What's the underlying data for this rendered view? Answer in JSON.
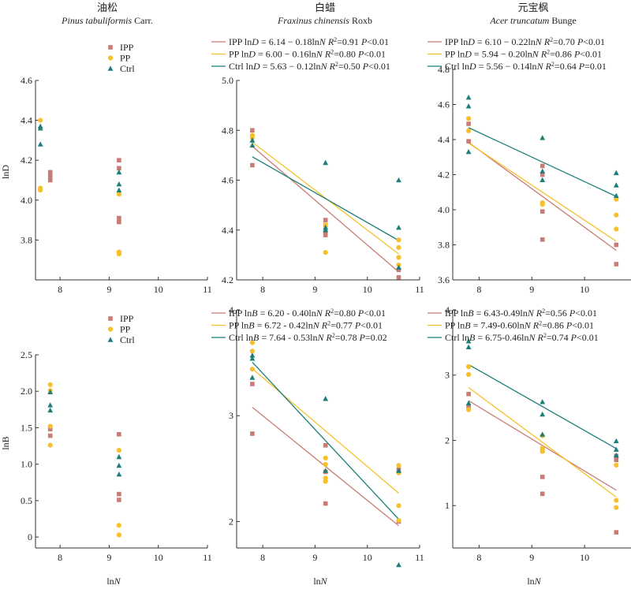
{
  "colors": {
    "IPP": "#c97b75",
    "PP": "#f6c02a",
    "Ctrl": "#1d7f7a",
    "axis": "#333333"
  },
  "legend_labels": {
    "IPP": "IPP",
    "PP": "PP",
    "Ctrl": "Ctrl"
  },
  "row_labels": {
    "top": "lnD",
    "bottom": "lnB"
  },
  "species": [
    {
      "cn": "油松",
      "latin": "Pinus tabuliformis",
      "authority": "Carr."
    },
    {
      "cn": "白蜡",
      "latin": "Fraxinus chinensis",
      "authority": "Roxb"
    },
    {
      "cn": "元宝枫",
      "latin": "Acer truncatum",
      "authority": "Bunge"
    }
  ],
  "chart_data": [
    {
      "type": "scatter",
      "id": "pinus-lnD",
      "xlabel": "",
      "ylabel": "lnD",
      "xlim": [
        7.5,
        11
      ],
      "ylim": [
        3.6,
        4.6
      ],
      "xticks": [
        8,
        9,
        10,
        11
      ],
      "yticks": [
        3.8,
        4.0,
        4.2,
        4.4,
        4.6
      ],
      "ytick_labels": [
        "3.8",
        "4.0",
        "4.2",
        "4.4",
        "4.6"
      ],
      "legend": [
        "IPP",
        "PP",
        "Ctrl"
      ],
      "series": [
        {
          "name": "IPP",
          "points": [
            [
              7.8,
              4.14
            ],
            [
              7.8,
              4.12
            ],
            [
              7.8,
              4.1
            ],
            [
              9.2,
              4.2
            ],
            [
              9.2,
              4.16
            ],
            [
              9.2,
              3.91
            ],
            [
              9.2,
              3.89
            ]
          ]
        },
        {
          "name": "PP",
          "points": [
            [
              7.6,
              4.4
            ],
            [
              7.6,
              4.06
            ],
            [
              7.6,
              4.05
            ],
            [
              9.2,
              4.03
            ],
            [
              9.2,
              3.74
            ],
            [
              9.2,
              3.73
            ]
          ]
        },
        {
          "name": "Ctrl",
          "points": [
            [
              7.6,
              4.37
            ],
            [
              7.6,
              4.36
            ],
            [
              7.6,
              4.28
            ],
            [
              9.2,
              4.14
            ],
            [
              9.2,
              4.08
            ],
            [
              9.2,
              4.05
            ]
          ]
        }
      ],
      "fits": []
    },
    {
      "type": "scatter",
      "id": "fraxinus-lnD",
      "xlabel": "",
      "ylabel": "",
      "xlim": [
        7.5,
        11
      ],
      "ylim": [
        4.2,
        5.0
      ],
      "xticks": [
        8,
        9,
        10,
        11
      ],
      "yticks": [
        4.2,
        4.4,
        4.6,
        4.8,
        5.0
      ],
      "ytick_labels": [
        "4.2",
        "4.4",
        "4.6",
        "4.8",
        "5.0"
      ],
      "series": [
        {
          "name": "IPP",
          "points": [
            [
              7.8,
              4.8
            ],
            [
              7.8,
              4.66
            ],
            [
              9.2,
              4.44
            ],
            [
              9.2,
              4.42
            ],
            [
              9.2,
              4.39
            ],
            [
              9.2,
              4.38
            ],
            [
              10.6,
              4.24
            ],
            [
              10.6,
              4.21
            ]
          ]
        },
        {
          "name": "PP",
          "points": [
            [
              7.8,
              4.78
            ],
            [
              7.8,
              4.77
            ],
            [
              9.2,
              4.42
            ],
            [
              9.2,
              4.31
            ],
            [
              10.6,
              4.36
            ],
            [
              10.6,
              4.33
            ],
            [
              10.6,
              4.29
            ],
            [
              10.6,
              4.26
            ]
          ]
        },
        {
          "name": "Ctrl",
          "points": [
            [
              7.8,
              4.76
            ],
            [
              7.8,
              4.74
            ],
            [
              9.2,
              4.67
            ],
            [
              9.2,
              4.41
            ],
            [
              9.2,
              4.4
            ],
            [
              10.6,
              4.6
            ],
            [
              10.6,
              4.41
            ],
            [
              10.6,
              4.25
            ]
          ]
        }
      ],
      "fits": [
        {
          "name": "IPP",
          "label": "IPP",
          "a": 6.14,
          "b": -0.18,
          "x": [
            7.8,
            10.6
          ],
          "eq": "6.14 − 0.18ln",
          "r2": "0.91",
          "p": "<0.01"
        },
        {
          "name": "PP",
          "label": "PP",
          "a": 6.0,
          "b": -0.16,
          "x": [
            7.8,
            10.6
          ],
          "eq": "6.00 − 0.16ln",
          "r2": "0.80",
          "p": "<0.01"
        },
        {
          "name": "Ctrl",
          "label": "Ctrl",
          "a": 5.63,
          "b": -0.12,
          "x": [
            7.8,
            10.6
          ],
          "eq": "5.63 − 0.12ln",
          "r2": "0.50",
          "p": "<0.01"
        }
      ]
    },
    {
      "type": "scatter",
      "id": "acer-lnD",
      "xlabel": "",
      "ylabel": "",
      "xlim": [
        7.5,
        11
      ],
      "ylim": [
        3.6,
        4.8
      ],
      "xticks": [
        8,
        9,
        10,
        11
      ],
      "yticks": [
        3.6,
        3.8,
        4.0,
        4.2,
        4.4,
        4.6,
        4.8
      ],
      "ytick_labels": [
        "3.6",
        "3.8",
        "4.0",
        "4.2",
        "4.4",
        "4.6",
        "4.8"
      ],
      "series": [
        {
          "name": "IPP",
          "points": [
            [
              7.8,
              4.49
            ],
            [
              7.8,
              4.39
            ],
            [
              9.2,
              4.25
            ],
            [
              9.2,
              4.2
            ],
            [
              9.2,
              3.99
            ],
            [
              9.2,
              3.83
            ],
            [
              10.6,
              3.8
            ],
            [
              10.6,
              3.69
            ]
          ]
        },
        {
          "name": "PP",
          "points": [
            [
              7.8,
              4.52
            ],
            [
              7.8,
              4.45
            ],
            [
              9.2,
              4.04
            ],
            [
              9.2,
              4.03
            ],
            [
              10.6,
              4.06
            ],
            [
              10.6,
              3.97
            ],
            [
              10.6,
              3.89
            ]
          ]
        },
        {
          "name": "Ctrl",
          "points": [
            [
              7.8,
              4.64
            ],
            [
              7.8,
              4.59
            ],
            [
              7.8,
              4.33
            ],
            [
              9.2,
              4.41
            ],
            [
              9.2,
              4.22
            ],
            [
              9.2,
              4.17
            ],
            [
              10.6,
              4.21
            ],
            [
              10.6,
              4.14
            ],
            [
              10.6,
              4.08
            ]
          ]
        }
      ],
      "fits": [
        {
          "name": "IPP",
          "label": "IPP",
          "a": 6.1,
          "b": -0.22,
          "x": [
            7.8,
            10.6
          ],
          "eq": "6.10 − 0.22ln",
          "r2": "0.70",
          "p": "<0.01"
        },
        {
          "name": "PP",
          "label": "PP",
          "a": 5.94,
          "b": -0.2,
          "x": [
            7.8,
            10.6
          ],
          "eq": "5.94 − 0.20ln",
          "r2": "0.86",
          "p": "<0.01"
        },
        {
          "name": "Ctrl",
          "label": "Ctrl",
          "a": 5.56,
          "b": -0.14,
          "x": [
            7.8,
            10.6
          ],
          "eq": "5.56 − 0.14ln",
          "r2": "0.64",
          "p": "=0.01"
        }
      ]
    },
    {
      "type": "scatter",
      "id": "pinus-lnB",
      "xlabel": "lnN",
      "ylabel": "lnB",
      "xlim": [
        7.5,
        11
      ],
      "ylim": [
        -0.15,
        2.5
      ],
      "xticks": [
        8,
        9,
        10,
        11
      ],
      "yticks": [
        0,
        0.5,
        1.0,
        1.5,
        2.0,
        2.5
      ],
      "ytick_labels": [
        "0",
        "0.5",
        "1.0",
        "1.5",
        "2.0",
        "2.5"
      ],
      "legend": [
        "IPP",
        "PP",
        "Ctrl"
      ],
      "series": [
        {
          "name": "IPP",
          "points": [
            [
              7.8,
              1.48
            ],
            [
              7.8,
              1.39
            ],
            [
              9.2,
              1.41
            ],
            [
              9.2,
              0.59
            ],
            [
              9.2,
              0.51
            ]
          ]
        },
        {
          "name": "PP",
          "points": [
            [
              7.8,
              2.09
            ],
            [
              7.8,
              2.01
            ],
            [
              7.8,
              1.52
            ],
            [
              7.8,
              1.26
            ],
            [
              9.2,
              1.19
            ],
            [
              9.2,
              0.16
            ],
            [
              9.2,
              0.03
            ]
          ]
        },
        {
          "name": "Ctrl",
          "points": [
            [
              7.8,
              1.99
            ],
            [
              7.8,
              1.81
            ],
            [
              7.8,
              1.74
            ],
            [
              9.2,
              1.1
            ],
            [
              9.2,
              0.98
            ],
            [
              9.2,
              0.86
            ]
          ]
        }
      ],
      "fits": []
    },
    {
      "type": "scatter",
      "id": "fraxinus-lnB",
      "xlabel": "lnN",
      "ylabel": "",
      "xlim": [
        7.5,
        11
      ],
      "ylim": [
        1.75,
        4.0
      ],
      "xticks": [
        8,
        9,
        10,
        11
      ],
      "yticks": [
        2,
        3,
        4
      ],
      "ytick_labels": [
        "2",
        "3",
        "4"
      ],
      "series": [
        {
          "name": "IPP",
          "points": [
            [
              7.8,
              3.3
            ],
            [
              7.8,
              2.83
            ],
            [
              9.2,
              2.72
            ],
            [
              9.2,
              2.47
            ],
            [
              9.2,
              2.17
            ],
            [
              10.6,
              2.49
            ],
            [
              10.6,
              2.0
            ]
          ]
        },
        {
          "name": "PP",
          "points": [
            [
              7.8,
              3.69
            ],
            [
              7.8,
              3.61
            ],
            [
              7.8,
              3.44
            ],
            [
              9.2,
              2.6
            ],
            [
              9.2,
              2.54
            ],
            [
              9.2,
              2.41
            ],
            [
              9.2,
              2.38
            ],
            [
              10.6,
              2.53
            ],
            [
              10.6,
              2.46
            ],
            [
              10.6,
              2.15
            ],
            [
              10.6,
              2.01
            ]
          ]
        },
        {
          "name": "Ctrl",
          "points": [
            [
              7.8,
              3.57
            ],
            [
              7.8,
              3.54
            ],
            [
              7.8,
              3.36
            ],
            [
              9.2,
              3.16
            ],
            [
              9.2,
              2.48
            ],
            [
              10.6,
              2.48
            ],
            [
              10.6,
              1.59
            ]
          ]
        }
      ],
      "fits": [
        {
          "name": "IPP",
          "label": "IPP",
          "a": 6.2,
          "b": -0.4,
          "x": [
            7.8,
            10.6
          ],
          "eq": "6.20 - 0.40ln",
          "r2": "0.80",
          "p": "<0.01"
        },
        {
          "name": "PP",
          "label": "PP",
          "a": 6.72,
          "b": -0.42,
          "x": [
            7.8,
            10.6
          ],
          "eq": "6.72 - 0.42ln",
          "r2": "0.77",
          "p": "<0.01"
        },
        {
          "name": "Ctrl",
          "label": "Ctrl",
          "a": 7.64,
          "b": -0.53,
          "x": [
            7.8,
            10.6
          ],
          "eq": "7.64 - 0.53ln",
          "r2": "0.78",
          "p": "=0.02"
        }
      ]
    },
    {
      "type": "scatter",
      "id": "acer-lnB",
      "xlabel": "lnN",
      "ylabel": "",
      "xlim": [
        7.5,
        11
      ],
      "ylim": [
        0.35,
        4.0
      ],
      "xticks": [
        8,
        9,
        10,
        11
      ],
      "yticks": [
        1,
        2,
        3,
        4
      ],
      "ytick_labels": [
        "1",
        "2",
        "3",
        "4"
      ],
      "series": [
        {
          "name": "IPP",
          "points": [
            [
              7.8,
              2.71
            ],
            [
              7.8,
              2.51
            ],
            [
              9.2,
              1.85
            ],
            [
              9.2,
              1.44
            ],
            [
              9.2,
              1.18
            ],
            [
              10.6,
              1.76
            ],
            [
              10.6,
              1.7
            ],
            [
              10.6,
              0.59
            ]
          ]
        },
        {
          "name": "PP",
          "points": [
            [
              7.8,
              3.13
            ],
            [
              7.8,
              3.01
            ],
            [
              7.8,
              2.47
            ],
            [
              9.2,
              2.07
            ],
            [
              9.2,
              1.88
            ],
            [
              9.2,
              1.83
            ],
            [
              10.6,
              1.62
            ],
            [
              10.6,
              1.08
            ],
            [
              10.6,
              0.97
            ]
          ]
        },
        {
          "name": "Ctrl",
          "points": [
            [
              7.8,
              3.52
            ],
            [
              7.8,
              3.43
            ],
            [
              7.8,
              2.57
            ],
            [
              9.2,
              2.59
            ],
            [
              9.2,
              2.4
            ],
            [
              9.2,
              2.09
            ],
            [
              10.6,
              1.99
            ],
            [
              10.6,
              1.86
            ],
            [
              10.6,
              1.77
            ]
          ]
        }
      ],
      "fits": [
        {
          "name": "IPP",
          "label": "IPP",
          "a": 6.43,
          "b": -0.49,
          "x": [
            7.8,
            10.6
          ],
          "eq": "6.43-0.49ln",
          "r2": "0.56",
          "p": "<0.01"
        },
        {
          "name": "PP",
          "label": "PP",
          "a": 7.49,
          "b": -0.6,
          "x": [
            7.8,
            10.6
          ],
          "eq": "7.49-0.60ln",
          "r2": "0.86",
          "p": "<0.01"
        },
        {
          "name": "Ctrl",
          "label": "Ctrl",
          "a": 6.75,
          "b": -0.46,
          "x": [
            7.8,
            10.6
          ],
          "eq": "6.75-0.46ln",
          "r2": "0.74",
          "p": "<0.01"
        }
      ]
    }
  ]
}
